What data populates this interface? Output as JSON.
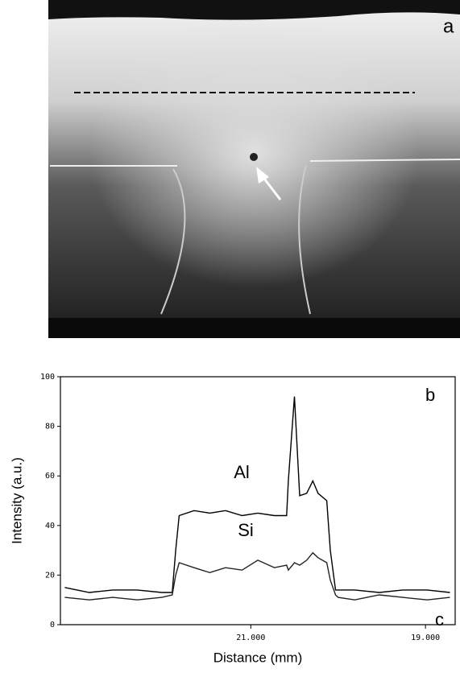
{
  "chart_data": {
    "type": "line",
    "xlabel": "Distance (mm)",
    "ylabel": "Intensity (a.u.)",
    "annotations": [
      "a",
      "b",
      "c"
    ],
    "x": [
      23.13,
      22.85,
      22.58,
      22.3,
      22.02,
      21.9,
      21.86,
      21.82,
      21.65,
      21.47,
      21.29,
      21.1,
      20.92,
      20.73,
      20.59,
      20.57,
      20.5,
      20.44,
      20.36,
      20.29,
      20.23,
      20.13,
      20.09,
      20.03,
      20.0,
      19.81,
      19.53,
      19.26,
      18.98,
      18.72
    ],
    "series": [
      {
        "name": "Al",
        "color": "#000000",
        "values": [
          15,
          13,
          14,
          14,
          13,
          13,
          30,
          44,
          46,
          45,
          46,
          44,
          45,
          44,
          44,
          58,
          92,
          52,
          53,
          58,
          53,
          50,
          30,
          14,
          14,
          14,
          13,
          14,
          14,
          13
        ]
      },
      {
        "name": "Si",
        "color": "#222222",
        "values": [
          11,
          10,
          11,
          10,
          11,
          12,
          20,
          25,
          23,
          21,
          23,
          22,
          26,
          23,
          24,
          22,
          25,
          24,
          26,
          29,
          27,
          25,
          18,
          12,
          11,
          10,
          12,
          11,
          10,
          11
        ]
      }
    ],
    "xlim": [
      23.18,
      18.66
    ],
    "xticks": [
      {
        "value": 21,
        "label": "21.000"
      },
      {
        "value": 19,
        "label": "19.000"
      }
    ],
    "ylim": [
      0,
      100
    ],
    "yticks": [
      0,
      20,
      40,
      60,
      80,
      100
    ]
  }
}
